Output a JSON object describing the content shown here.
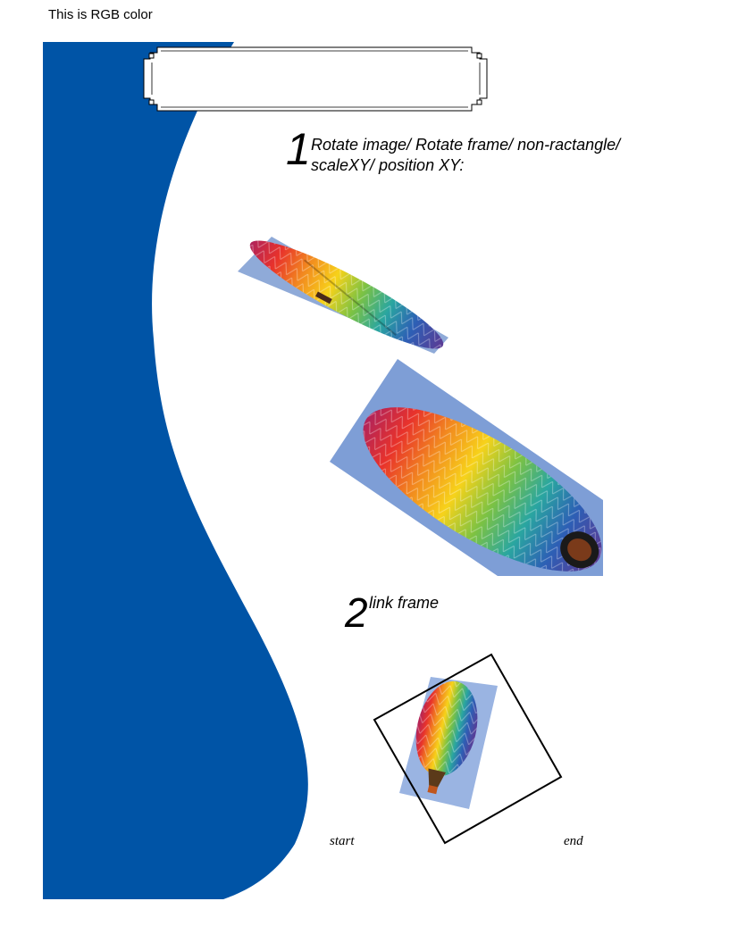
{
  "header": {
    "note": "This is RGB color"
  },
  "colors": {
    "panel_blue": "#0054a6",
    "sky": "#7e9ed6",
    "sky_light": "#9ab4e2",
    "stroke": "#000000",
    "balloon_stripes": [
      "#e8322b",
      "#f28a1f",
      "#f7d21a",
      "#7cc243",
      "#2aa6a0",
      "#2d5fb5",
      "#5b3a94",
      "#b0235b"
    ]
  },
  "step1": {
    "number": "1",
    "line1": "Rotate image/  Rotate frame/  non-ractangle/",
    "line2": "scaleXY/  position XY:"
  },
  "step2": {
    "number": "2",
    "label": "link frame"
  },
  "captions": {
    "start": "start",
    "end": "end"
  },
  "icons": {
    "title_frame": "ornate-frame-icon",
    "balloon": "hot-air-balloon-icon"
  }
}
